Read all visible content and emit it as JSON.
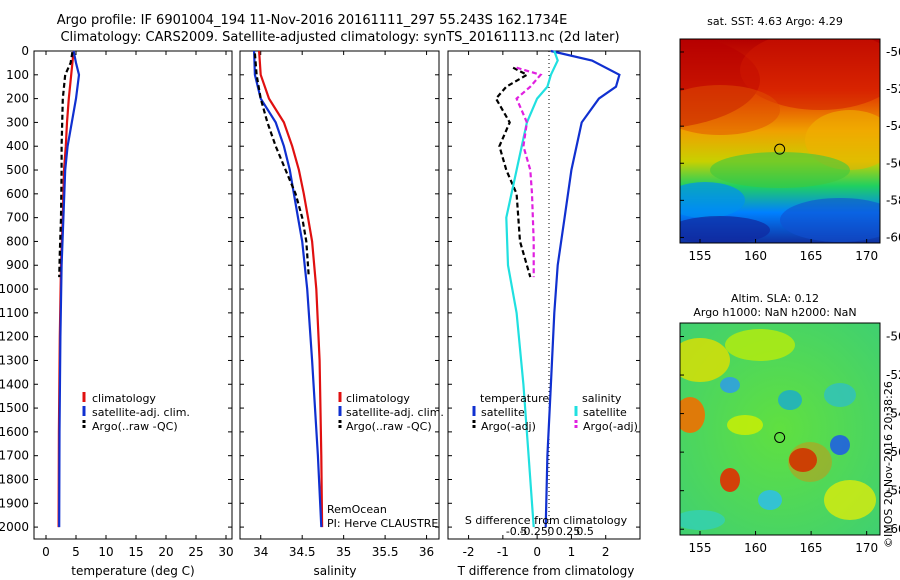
{
  "titles": {
    "line1": "Argo profile: IF 6901004_194 11-Nov-2016 20161111_297 55.243S 162.1734E",
    "line2": "Climatology: CARS2009. Satellite-adjusted climatology: synTS_20161113.nc (2d later)"
  },
  "watermark": "©IMOS 20-Nov-2016 20:38:26",
  "colors": {
    "climatology": "#e01010",
    "satellite": "#1030d0",
    "argo": "#000000",
    "salinity_sat": "#20e0e0",
    "salinity_argo": "#e020e0"
  },
  "chart_data": [
    {
      "type": "line",
      "xlabel": "temperature (deg C)",
      "ylabel": "",
      "xlim": [
        -2,
        31
      ],
      "ylim": [
        2050,
        0
      ],
      "xticks": [
        0,
        5,
        10,
        15,
        20,
        25,
        30
      ],
      "yticks": [
        0,
        100,
        200,
        300,
        400,
        500,
        600,
        700,
        800,
        900,
        1000,
        1100,
        1200,
        1300,
        1400,
        1500,
        1600,
        1700,
        1800,
        1900,
        2000
      ],
      "legend": [
        "climatology",
        "satellite-adj. clim.",
        "Argo(..raw -QC)"
      ],
      "series": [
        {
          "name": "climatology",
          "style": "solid",
          "color": "#e01010",
          "x": [
            4.6,
            4.4,
            4.2,
            3.8,
            3.5,
            3.3,
            3.0,
            2.8,
            2.5,
            2.3,
            2.15,
            2.1
          ],
          "y": [
            0,
            50,
            100,
            200,
            300,
            400,
            500,
            700,
            900,
            1200,
            1600,
            2000
          ]
        },
        {
          "name": "satellite-adj. clim.",
          "style": "solid",
          "color": "#1030d0",
          "x": [
            4.6,
            5.0,
            5.5,
            5.0,
            4.3,
            3.6,
            3.2,
            2.9,
            2.6,
            2.4,
            2.25,
            2.2
          ],
          "y": [
            0,
            50,
            100,
            200,
            300,
            400,
            500,
            700,
            900,
            1200,
            1600,
            2000
          ]
        },
        {
          "name": "Argo(..raw -QC)",
          "style": "dashed",
          "color": "#000000",
          "x": [
            4.4,
            4.1,
            3.2,
            2.8,
            2.7,
            2.6,
            2.6,
            2.5,
            2.3,
            2.2
          ],
          "y": [
            5,
            50,
            100,
            200,
            300,
            400,
            500,
            700,
            850,
            950
          ]
        }
      ]
    },
    {
      "type": "line",
      "xlabel": "salinity",
      "ylabel": "",
      "xlim": [
        33.75,
        36.15
      ],
      "ylim": [
        2050,
        0
      ],
      "xticks": [
        34,
        34.5,
        35,
        35.5,
        36
      ],
      "legend": [
        "climatology",
        "satellite-adj. clim.",
        "Argo(..raw -QC)"
      ],
      "annotations": [
        "RemOcean",
        "PI: Herve CLAUSTRE"
      ],
      "series": [
        {
          "name": "climatology",
          "style": "solid",
          "color": "#e01010",
          "x": [
            33.98,
            34.0,
            34.1,
            34.28,
            34.38,
            34.46,
            34.52,
            34.57,
            34.62,
            34.67,
            34.71,
            34.73,
            34.74
          ],
          "y": [
            0,
            100,
            200,
            300,
            400,
            500,
            600,
            700,
            800,
            1000,
            1300,
            1700,
            2000
          ]
        },
        {
          "name": "satellite-adj. clim.",
          "style": "solid",
          "color": "#1030d0",
          "x": [
            33.92,
            33.93,
            34.0,
            34.18,
            34.28,
            34.35,
            34.4,
            34.45,
            34.5,
            34.56,
            34.62,
            34.69,
            34.73
          ],
          "y": [
            0,
            100,
            200,
            300,
            400,
            500,
            600,
            700,
            800,
            1000,
            1300,
            1700,
            2000
          ]
        },
        {
          "name": "Argo(..raw -QC)",
          "style": "dashed",
          "color": "#000000",
          "x": [
            33.93,
            33.95,
            34.0,
            34.08,
            34.18,
            34.3,
            34.42,
            34.5,
            34.55,
            34.58
          ],
          "y": [
            10,
            100,
            200,
            300,
            400,
            500,
            600,
            700,
            800,
            950
          ]
        }
      ]
    },
    {
      "type": "line",
      "xlabel": "T difference from climatology",
      "title_bottom": "S difference from climatology",
      "xlim": [
        -2.6,
        3.0
      ],
      "ylim": [
        2050,
        0
      ],
      "xticks": [
        -2,
        -1,
        0,
        1,
        2
      ],
      "xticks_s_labels": [
        "-0.5",
        "-0.25",
        "0",
        "0.25",
        "0.5"
      ],
      "legend_titles": [
        "temperature",
        "salinity"
      ],
      "legend": [
        "satellite",
        "Argo(-adj)",
        "satellite",
        "Argo(-adj)"
      ],
      "series": [
        {
          "name": "satellite",
          "group": "temperature",
          "style": "solid",
          "color": "#1030d0",
          "x": [
            0.4,
            1.6,
            2.4,
            2.3,
            1.8,
            1.3,
            1.0,
            0.8,
            0.6,
            0.5,
            0.4,
            0.3,
            0.25
          ],
          "y": [
            0,
            40,
            100,
            150,
            200,
            300,
            500,
            700,
            900,
            1100,
            1400,
            1700,
            2000
          ]
        },
        {
          "name": "Argo(-adj)",
          "group": "temperature",
          "style": "dashed",
          "color": "#000000",
          "x": [
            -0.7,
            -0.3,
            -0.9,
            -1.2,
            -0.8,
            -1.1,
            -0.9,
            -0.6,
            -0.5,
            -0.2
          ],
          "y": [
            70,
            100,
            150,
            200,
            300,
            400,
            500,
            600,
            800,
            950
          ]
        },
        {
          "name": "satellite",
          "group": "salinity",
          "style": "solid",
          "color": "#20e0e0",
          "x": [
            0.5,
            0.6,
            0.4,
            0.3,
            0.0,
            -0.3,
            -0.6,
            -0.9,
            -0.85,
            -0.6,
            -0.4,
            -0.25,
            -0.1
          ],
          "y": [
            0,
            40,
            100,
            150,
            200,
            300,
            500,
            700,
            900,
            1100,
            1400,
            1700,
            2000
          ]
        },
        {
          "name": "Argo(-adj)",
          "group": "salinity",
          "style": "dashed",
          "color": "#e020e0",
          "x": [
            -0.6,
            0.1,
            -0.2,
            -0.6,
            -0.3,
            -0.4,
            -0.2,
            -0.15,
            -0.1,
            -0.1
          ],
          "y": [
            70,
            100,
            150,
            200,
            300,
            400,
            500,
            600,
            800,
            950
          ]
        }
      ]
    }
  ],
  "maps": [
    {
      "title1": "sat. SST: 4.63 Argo: 4.29",
      "title2": "",
      "xticks": [
        155,
        160,
        165,
        170
      ],
      "yticks": [
        -50,
        -52,
        -54,
        -56,
        -58,
        -60
      ],
      "xlim": [
        153.2,
        171.2
      ],
      "ylim": [
        -60.3,
        -49.3
      ],
      "marker": [
        162.17,
        -55.24
      ]
    },
    {
      "title1": "Altim. SLA: 0.12",
      "title2": "Argo h1000: NaN h2000: NaN",
      "xticks": [
        155,
        160,
        165,
        170
      ],
      "yticks": [
        -50,
        -52,
        -54,
        -56,
        -58,
        -60
      ],
      "xlim": [
        153.2,
        171.2
      ],
      "ylim": [
        -60.3,
        -49.3
      ],
      "marker": [
        162.17,
        -55.24
      ]
    }
  ]
}
